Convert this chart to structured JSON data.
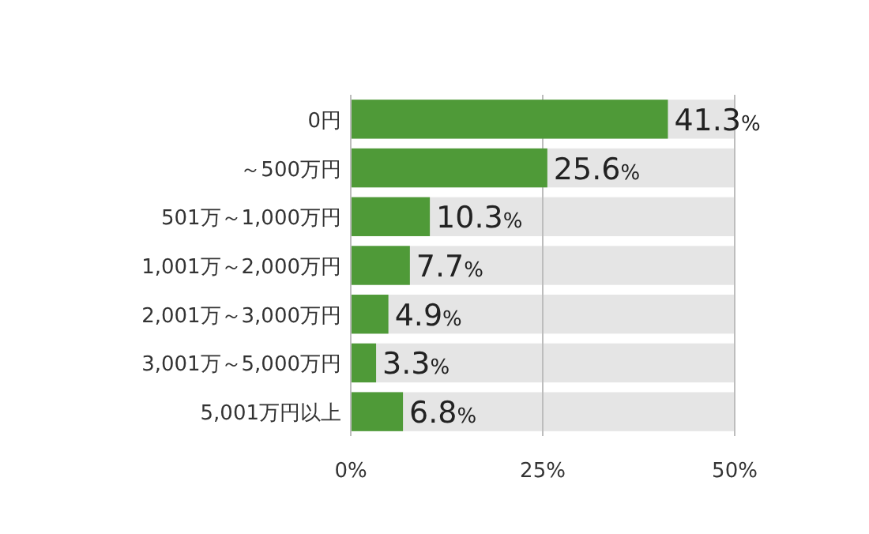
{
  "chart_data": {
    "type": "bar",
    "orientation": "horizontal",
    "categories": [
      "0円",
      "～500万円",
      "501万～1,000万円",
      "1,001万～2,000万円",
      "2,001万～3,000万円",
      "3,001万～5,000万円",
      "5,001万円以上"
    ],
    "values": [
      41.3,
      25.6,
      10.3,
      7.7,
      4.9,
      3.3,
      6.8
    ],
    "value_labels": [
      "41.3%",
      "25.6%",
      "10.3%",
      "7.7%",
      "4.9%",
      "3.3%",
      "6.8%"
    ],
    "color": "#4f9a38",
    "xlim": [
      0,
      50
    ],
    "xticks": [
      {
        "value": 0,
        "label": "0%"
      },
      {
        "value": 25,
        "label": "25%"
      },
      {
        "value": 50,
        "label": "50%"
      }
    ],
    "bands": [
      {
        "axis": "x",
        "from": 0,
        "to": 50,
        "color": "#e5e5e5"
      }
    ],
    "grid": "x"
  }
}
